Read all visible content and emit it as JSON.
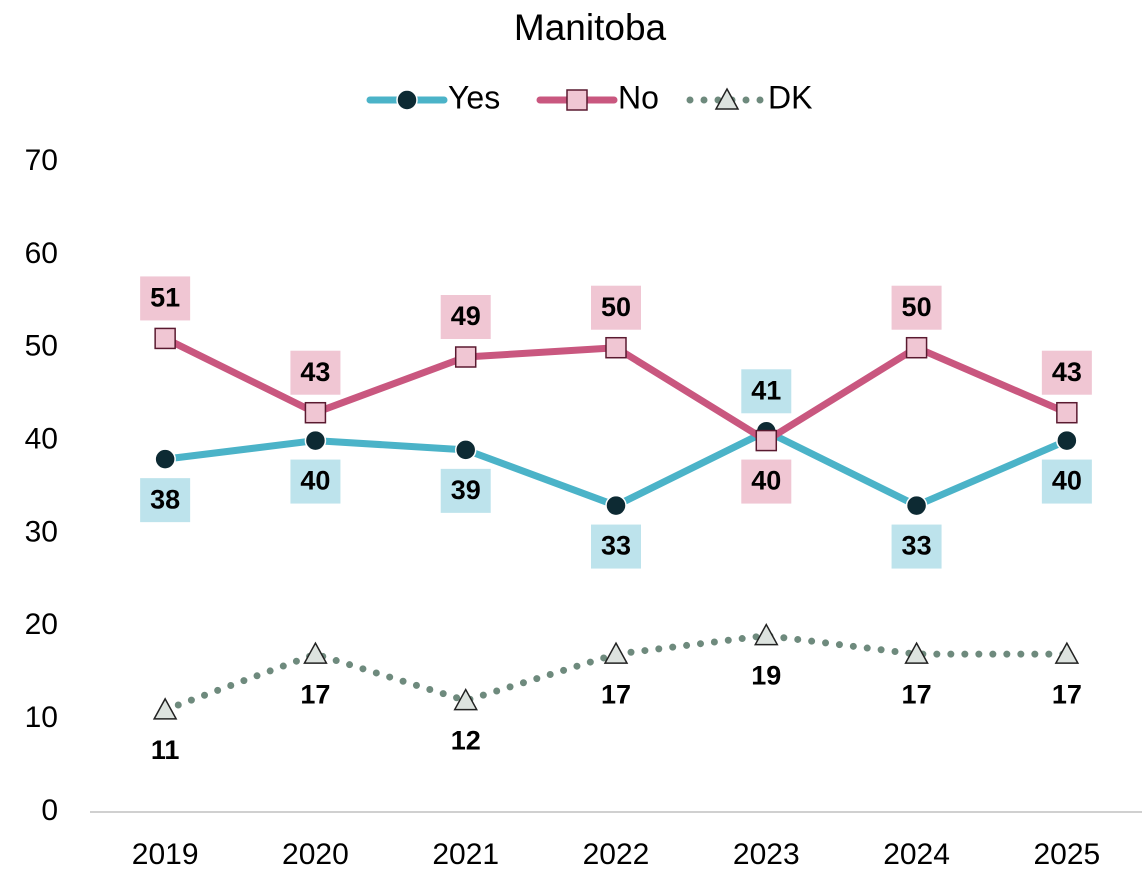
{
  "chart_data": {
    "type": "line",
    "title": "Manitoba",
    "categories": [
      "2019",
      "2020",
      "2021",
      "2022",
      "2023",
      "2024",
      "2025"
    ],
    "series": [
      {
        "name": "Yes",
        "color": "#4bb3c8",
        "values": [
          38,
          40,
          39,
          33,
          41,
          33,
          40
        ]
      },
      {
        "name": "No",
        "color": "#c9577f",
        "values": [
          51,
          43,
          49,
          50,
          40,
          50,
          43
        ]
      },
      {
        "name": "DK",
        "color": "#6e8a7d",
        "values": [
          11,
          17,
          12,
          17,
          19,
          17,
          17
        ]
      }
    ],
    "ylim": [
      0,
      70
    ],
    "yticks": [
      0,
      10,
      20,
      30,
      40,
      50,
      60,
      70
    ],
    "grid": false,
    "legend": "top"
  }
}
